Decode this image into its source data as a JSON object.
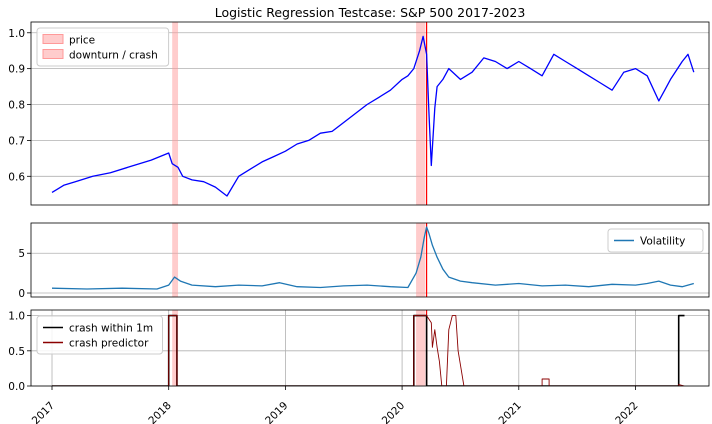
{
  "chart_data": [
    {
      "type": "line",
      "title": "Logistic Regression Testcase: S&P 500 2017-2023",
      "ylim": [
        0.52,
        1.03
      ],
      "yticks": [
        "0.6",
        "0.7",
        "0.8",
        "0.9",
        "1.0"
      ],
      "grid": "y",
      "legend": {
        "placement": "top-left",
        "entries": [
          "price",
          "downturn / crash"
        ]
      },
      "series": [
        {
          "name": "price",
          "color": "#0000ff",
          "x": [
            2017.0,
            2017.05,
            2017.1,
            2017.2,
            2017.35,
            2017.5,
            2017.65,
            2017.85,
            2018.0,
            2018.03,
            2018.08,
            2018.12,
            2018.2,
            2018.3,
            2018.4,
            2018.5,
            2018.6,
            2018.7,
            2018.8,
            2018.9,
            2019.0,
            2019.1,
            2019.2,
            2019.3,
            2019.4,
            2019.5,
            2019.6,
            2019.7,
            2019.8,
            2019.9,
            2020.0,
            2020.05,
            2020.1,
            2020.15,
            2020.18,
            2020.21,
            2020.23,
            2020.25,
            2020.28,
            2020.3,
            2020.35,
            2020.4,
            2020.5,
            2020.6,
            2020.7,
            2020.8,
            2020.9,
            2021.0,
            2021.1,
            2021.2,
            2021.3,
            2021.4,
            2021.5,
            2021.6,
            2021.7,
            2021.8,
            2021.9,
            2022.0,
            2022.1,
            2022.2,
            2022.25,
            2022.3,
            2022.4,
            2022.45,
            2022.5
          ],
          "values": [
            0.555,
            0.565,
            0.575,
            0.585,
            0.6,
            0.61,
            0.625,
            0.645,
            0.665,
            0.635,
            0.625,
            0.6,
            0.59,
            0.585,
            0.57,
            0.545,
            0.6,
            0.62,
            0.64,
            0.655,
            0.67,
            0.69,
            0.7,
            0.72,
            0.725,
            0.75,
            0.775,
            0.8,
            0.82,
            0.84,
            0.87,
            0.88,
            0.9,
            0.95,
            0.99,
            0.94,
            0.78,
            0.63,
            0.79,
            0.85,
            0.87,
            0.9,
            0.87,
            0.89,
            0.93,
            0.92,
            0.9,
            0.92,
            0.9,
            0.88,
            0.94,
            0.92,
            0.9,
            0.88,
            0.86,
            0.84,
            0.89,
            0.9,
            0.88,
            0.81,
            0.84,
            0.87,
            0.92,
            0.94,
            0.89
          ]
        }
      ]
    },
    {
      "type": "line",
      "ylim": [
        -0.5,
        8.8
      ],
      "yticks": [
        "0",
        "5"
      ],
      "grid": "y",
      "legend": {
        "placement": "top-right",
        "entries": [
          "Volatility"
        ]
      },
      "series": [
        {
          "name": "Volatility",
          "color": "#1f77b4",
          "x": [
            2017.0,
            2017.3,
            2017.6,
            2017.9,
            2018.0,
            2018.05,
            2018.1,
            2018.2,
            2018.4,
            2018.6,
            2018.8,
            2018.95,
            2019.1,
            2019.3,
            2019.5,
            2019.7,
            2019.9,
            2020.05,
            2020.12,
            2020.16,
            2020.19,
            2020.21,
            2020.23,
            2020.26,
            2020.3,
            2020.35,
            2020.4,
            2020.5,
            2020.6,
            2020.8,
            2021.0,
            2021.2,
            2021.4,
            2021.6,
            2021.8,
            2022.0,
            2022.1,
            2022.2,
            2022.3,
            2022.4,
            2022.5
          ],
          "values": [
            0.6,
            0.5,
            0.6,
            0.5,
            1.0,
            2.0,
            1.5,
            1.0,
            0.8,
            1.0,
            0.9,
            1.3,
            0.8,
            0.7,
            0.9,
            1.0,
            0.8,
            0.7,
            2.5,
            4.5,
            7.0,
            8.3,
            7.5,
            6.0,
            4.5,
            3.0,
            2.0,
            1.5,
            1.3,
            1.0,
            1.2,
            0.9,
            1.0,
            0.8,
            1.1,
            1.0,
            1.2,
            1.5,
            1.0,
            0.8,
            1.2
          ]
        }
      ]
    },
    {
      "type": "line",
      "ylim": [
        0.0,
        1.08
      ],
      "yticks": [
        "0.0",
        "0.5",
        "1.0"
      ],
      "xticks": [
        "2017",
        "2018",
        "2019",
        "2020",
        "2021",
        "2022"
      ],
      "grid": "both",
      "legend": {
        "placement": "top-left",
        "entries": [
          "crash within 1m",
          "crash predictor"
        ]
      },
      "series": [
        {
          "name": "crash within 1m",
          "color": "#000000",
          "x": [
            2017.0,
            2018.0,
            2018.0,
            2018.07,
            2018.07,
            2020.1,
            2020.1,
            2020.21,
            2020.21,
            2022.37,
            2022.37,
            2022.42
          ],
          "values": [
            0,
            0,
            1,
            1,
            0,
            0,
            1,
            1,
            0,
            0,
            1,
            1
          ]
        },
        {
          "name": "crash predictor",
          "color": "#8b0000",
          "x": [
            2017.0,
            2018.0,
            2018.0,
            2018.07,
            2018.07,
            2020.1,
            2020.1,
            2020.21,
            2020.23,
            2020.25,
            2020.26,
            2020.28,
            2020.3,
            2020.32,
            2020.34,
            2020.36,
            2020.38,
            2020.4,
            2020.43,
            2020.46,
            2020.48,
            2020.51,
            2020.53,
            2021.2,
            2021.2,
            2021.26,
            2021.26,
            2022.37,
            2022.37,
            2022.42
          ],
          "values": [
            0,
            0,
            1,
            1,
            0,
            0,
            1,
            1,
            0.95,
            0.9,
            0.55,
            0.8,
            0.55,
            0.35,
            0.0,
            0.0,
            0.0,
            0.8,
            1.0,
            1.0,
            0.5,
            0.2,
            0.0,
            0.0,
            0.1,
            0.1,
            0.0,
            0.0,
            0.02,
            0.0
          ]
        }
      ]
    }
  ],
  "annotations": {
    "shaded_spans": [
      [
        2018.03,
        2018.08
      ],
      [
        2020.12,
        2020.2
      ]
    ],
    "shade_color": "#ff9999",
    "crash_line_x": 2020.21,
    "crash_line_color": "#ff0000"
  },
  "x_domain": [
    2016.82,
    2022.63
  ]
}
